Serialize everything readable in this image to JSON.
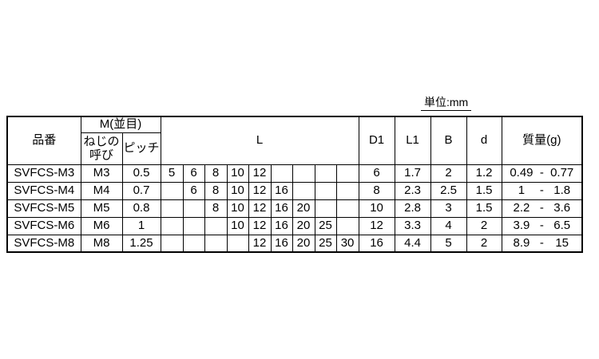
{
  "unit_label": "単位:mm",
  "table": {
    "headers": {
      "part_number": "品番",
      "m_group": "M(並目)",
      "thread_size": "ねじの呼び",
      "pitch": "ピッチ",
      "length": "L",
      "d1": "D1",
      "l1": "L1",
      "b": "B",
      "d": "d",
      "mass": "質量(g)"
    },
    "length_columns": [
      "5",
      "6",
      "8",
      "10",
      "12",
      "16",
      "20",
      "25",
      "30"
    ],
    "mass_separator": "-",
    "rows": [
      {
        "part_number": "SVFCS-M3",
        "thread_size": "M3",
        "pitch": "0.5",
        "lengths": [
          "5",
          "6",
          "8",
          "10",
          "12",
          "",
          "",
          "",
          ""
        ],
        "d1": "6",
        "l1": "1.7",
        "b": "2",
        "d": "1.2",
        "mass_min": "0.49",
        "mass_max": "0.77"
      },
      {
        "part_number": "SVFCS-M4",
        "thread_size": "M4",
        "pitch": "0.7",
        "lengths": [
          "",
          "6",
          "8",
          "10",
          "12",
          "16",
          "",
          "",
          ""
        ],
        "d1": "8",
        "l1": "2.3",
        "b": "2.5",
        "d": "1.5",
        "mass_min": "1",
        "mass_max": "1.8"
      },
      {
        "part_number": "SVFCS-M5",
        "thread_size": "M5",
        "pitch": "0.8",
        "lengths": [
          "",
          "",
          "8",
          "10",
          "12",
          "16",
          "20",
          "",
          ""
        ],
        "d1": "10",
        "l1": "2.8",
        "b": "3",
        "d": "1.5",
        "mass_min": "2.2",
        "mass_max": "3.6"
      },
      {
        "part_number": "SVFCS-M6",
        "thread_size": "M6",
        "pitch": "1",
        "lengths": [
          "",
          "",
          "",
          "10",
          "12",
          "16",
          "20",
          "25",
          ""
        ],
        "d1": "12",
        "l1": "3.3",
        "b": "4",
        "d": "2",
        "mass_min": "3.9",
        "mass_max": "6.5"
      },
      {
        "part_number": "SVFCS-M8",
        "thread_size": "M8",
        "pitch": "1.25",
        "lengths": [
          "",
          "",
          "",
          "",
          "12",
          "16",
          "20",
          "25",
          "30"
        ],
        "d1": "16",
        "l1": "4.4",
        "b": "5",
        "d": "2",
        "mass_min": "8.9",
        "mass_max": "15"
      }
    ]
  }
}
